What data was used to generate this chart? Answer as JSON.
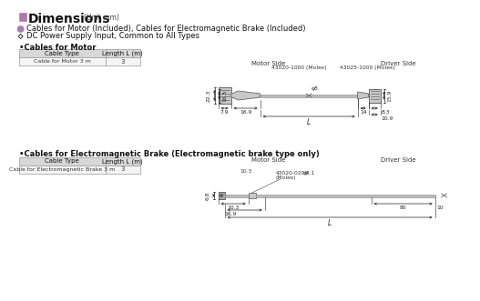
{
  "title": "Dimensions",
  "title_unit": "(Unit mm)",
  "bg_color": "#ffffff",
  "title_box_color": "#b07ab0",
  "bullet1_color": "#b07ab0",
  "line1": "Cables for Motor (Included), Cables for Electromagnetic Brake (Included)",
  "line2": "DC Power Supply Input, Common to All Types",
  "motor_section_title": "Cables for Motor",
  "brake_section_title": "Cables for Electromagnetic Brake (Electromagnetic brake type only)",
  "table_header": [
    "Cable Type",
    "Length L (m)"
  ],
  "motor_table_row": [
    "Cable for Motor 3 m",
    "3"
  ],
  "brake_table_row": [
    "Cable for Electromagnetic Brake 3 m",
    "3"
  ],
  "motor_side_label": "Motor Side",
  "driver_side_label": "Driver Side",
  "motor_connector1": "43020-1000 (Molex)",
  "motor_connector2": "43025-1000 (Molex)",
  "brake_connector1": "43020-0200",
  "brake_connector2": "(Molex)",
  "motor_dims": {
    "d22_3": "22.3",
    "d16_5": "16.5",
    "d7_9": "7.9",
    "d16_9": "16.9",
    "d8": "φ8",
    "d14": "14",
    "d8_3": "8.3",
    "d10_9": "10.9",
    "d15_9": "15.9",
    "L": "L"
  },
  "brake_dims": {
    "d6_8": "6.8",
    "d10_3": "10.3",
    "d4_1": "φ4.1",
    "d16_9": "16.9",
    "d80": "80",
    "d10": "10",
    "L": "L"
  },
  "lc": "#222222",
  "gray_fill": "#c8c8c8",
  "dark_gray": "#666666",
  "connector_fill": "#999999"
}
